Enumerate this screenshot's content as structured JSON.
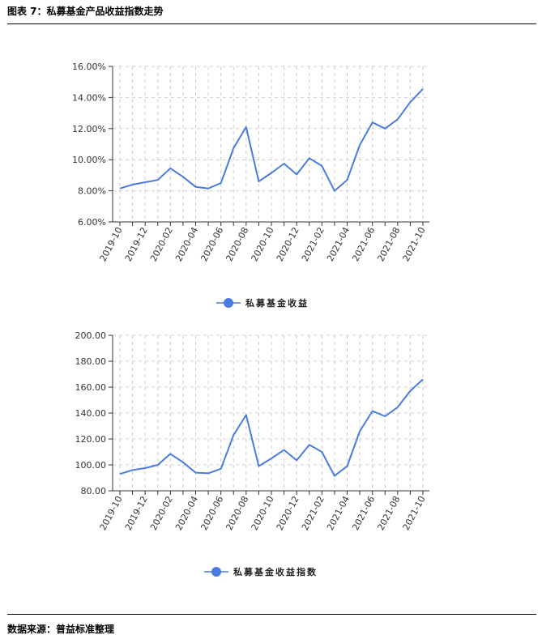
{
  "figure_title": "图表 7：私募基金产品收益指数走势",
  "source_text": "数据来源：普益标准整理",
  "colors": {
    "series": "#4a7be0",
    "grid": "#cccccc",
    "axis": "#333333"
  },
  "chart_data": [
    {
      "type": "line",
      "x_tick_labels": [
        "2019-10",
        "2019-12",
        "2020-02",
        "2020-04",
        "2020-06",
        "2020-08",
        "2020-10",
        "2020-12",
        "2021-02",
        "2021-04",
        "2021-06",
        "2021-08",
        "2021-10"
      ],
      "y_tick_labels": [
        "6.00%",
        "8.00%",
        "10.00%",
        "12.00%",
        "14.00%",
        "16.00%"
      ],
      "ylim": [
        6,
        16
      ],
      "grid": true,
      "legend": "bottom-center",
      "series": [
        {
          "name": "私募基金收益",
          "values": [
            8.15,
            8.4,
            8.55,
            8.7,
            9.45,
            8.9,
            8.25,
            8.15,
            8.5,
            10.75,
            12.1,
            8.6,
            9.15,
            9.75,
            9.05,
            10.1,
            9.6,
            8.0,
            8.7,
            10.95,
            12.4,
            12.0,
            12.6,
            13.7,
            14.55
          ]
        }
      ]
    },
    {
      "type": "line",
      "x_tick_labels": [
        "2019-10",
        "2019-12",
        "2020-02",
        "2020-04",
        "2020-06",
        "2020-08",
        "2020-10",
        "2020-12",
        "2021-02",
        "2021-04",
        "2021-06",
        "2021-08",
        "2021-10"
      ],
      "y_tick_labels": [
        "80.00",
        "100.00",
        "120.00",
        "140.00",
        "160.00",
        "180.00",
        "200.00"
      ],
      "ylim": [
        80,
        200
      ],
      "grid": true,
      "legend": "bottom-center",
      "series": [
        {
          "name": "私募基金收益指数",
          "values": [
            93.0,
            96.0,
            97.5,
            100.0,
            108.5,
            102.0,
            94.0,
            93.5,
            97.0,
            123.0,
            138.5,
            99.0,
            105.0,
            111.5,
            103.5,
            115.5,
            110.0,
            91.5,
            99.0,
            126.0,
            141.5,
            137.5,
            144.5,
            157.0,
            166.0
          ]
        }
      ]
    }
  ]
}
